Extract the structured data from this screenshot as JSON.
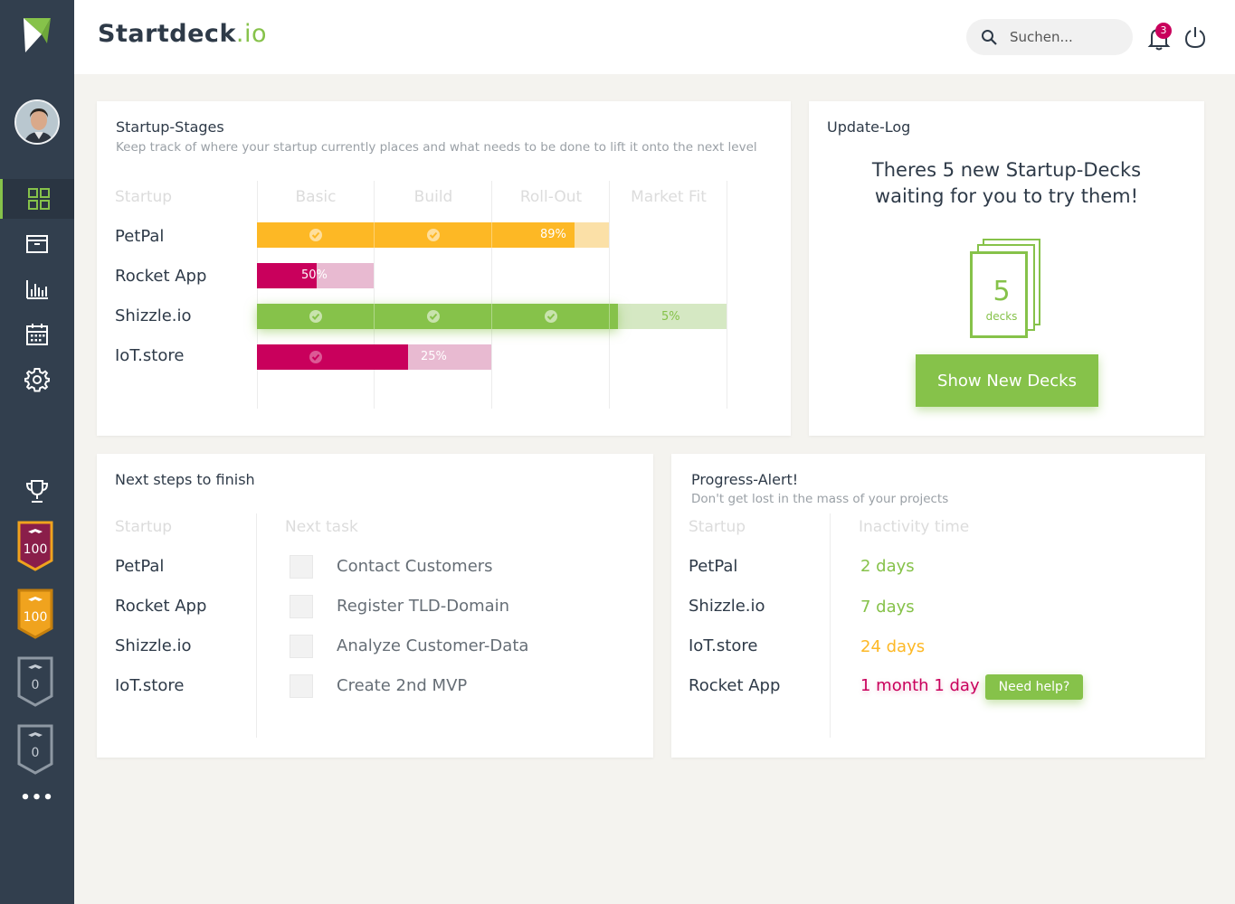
{
  "brand": {
    "name": "Startdeck",
    "tld": ".io"
  },
  "search": {
    "placeholder": "Suchen..."
  },
  "notifications": {
    "count": "3"
  },
  "sidebar": {
    "active": "dashboard-icon",
    "nav": [
      "dashboard-icon",
      "archive-icon",
      "chart-icon",
      "calendar-icon",
      "settings-icon"
    ],
    "badges": [
      {
        "value": "100",
        "color": "#8a1e4a"
      },
      {
        "value": "100",
        "color": "#f0a31e"
      },
      {
        "value": "0",
        "color": "#323f4e"
      },
      {
        "value": "0",
        "color": "#323f4e"
      }
    ],
    "more": "•••"
  },
  "stages": {
    "title": "Startup-Stages",
    "subtitle": "Keep track of where your startup currently places and what needs to be done to lift it onto the next level",
    "columns": [
      "Startup",
      "Basic",
      "Build",
      "Roll-Out",
      "Market Fit"
    ],
    "rows": [
      {
        "name": "PetPal",
        "progress_label": "89%",
        "color": "#fdb825"
      },
      {
        "name": "Rocket App",
        "progress_label": "50%",
        "color": "#c9005c"
      },
      {
        "name": "Shizzle.io",
        "progress_label": "5%",
        "color": "#86c24a"
      },
      {
        "name": "IoT.store",
        "progress_label": "25%",
        "color": "#c9005c"
      }
    ]
  },
  "update": {
    "title": "Update-Log",
    "message": "Theres 5 new Startup-Decks waiting for you to try them!",
    "deck_count": "5",
    "deck_label": "decks",
    "button": "Show New Decks"
  },
  "next_steps": {
    "title": "Next steps to finish",
    "columns": [
      "Startup",
      "Next task"
    ],
    "rows": [
      {
        "name": "PetPal",
        "task": "Contact Customers"
      },
      {
        "name": "Rocket App",
        "task": "Register TLD-Domain"
      },
      {
        "name": "Shizzle.io",
        "task": "Analyze Customer-Data"
      },
      {
        "name": "IoT.store",
        "task": "Create 2nd MVP"
      }
    ]
  },
  "progress_alert": {
    "title": "Progress-Alert!",
    "subtitle": "Don't get lost in the mass of your projects",
    "columns": [
      "Startup",
      "Inactivity time"
    ],
    "rows": [
      {
        "name": "PetPal",
        "time": "2 days",
        "color": "#86c24a"
      },
      {
        "name": "Shizzle.io",
        "time": "7 days",
        "color": "#86c24a"
      },
      {
        "name": "IoT.store",
        "time": "24 days",
        "color": "#fdb825"
      },
      {
        "name": "Rocket App",
        "time": "1 month 1 day",
        "color": "#c9005c"
      }
    ],
    "help_button": "Need help?"
  }
}
